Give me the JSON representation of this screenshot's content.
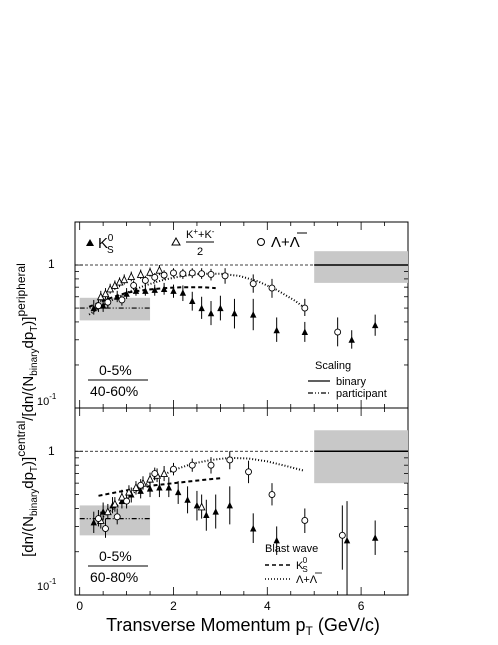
{
  "figure": {
    "x_axis_label": "Transverse Momentum p_T (GeV/c)",
    "y_axis_label": "[dn/(N_binary dp_T)]^central / [dn/(N_binary dp_T)]^peripheral",
    "x_ticks": [
      "0",
      "2",
      "4",
      "6"
    ],
    "y_ticks": [
      "10^-1",
      "1",
      "10^-1",
      "1"
    ]
  },
  "chart_data": [
    {
      "type": "scatter",
      "panel": "top",
      "centrality_label": {
        "numerator": "0-5%",
        "denominator": "40-60%"
      },
      "xlim": [
        -0.1,
        7.0
      ],
      "ylim": [
        0.1,
        2.0
      ],
      "log_y": true,
      "legend": {
        "entries": [
          {
            "marker": "filled-triangle",
            "label": "K_S^0"
          },
          {
            "marker": "open-triangle",
            "label": "(K^+ + K^-)/2"
          },
          {
            "marker": "open-circle",
            "label": "Λ+Λ̄"
          }
        ]
      },
      "legend2": {
        "title": "Scaling",
        "entries": [
          {
            "style": "solid",
            "label": "binary"
          },
          {
            "style": "dash-dot",
            "label": "participant"
          }
        ]
      },
      "reference_lines": {
        "binary": {
          "y": 1.0,
          "x": [
            5.0,
            7.0
          ],
          "band": [
            0.75,
            1.25
          ]
        },
        "participant": {
          "y": 0.5,
          "x": [
            0.0,
            1.5
          ],
          "band": [
            0.41,
            0.59
          ]
        },
        "unity": 1.0
      },
      "series": [
        {
          "name": "K_S^0",
          "marker": "filled-triangle",
          "points": [
            {
              "x": 0.3,
              "y": 0.5,
              "lo": 0.45,
              "hi": 0.57
            },
            {
              "x": 0.5,
              "y": 0.52,
              "lo": 0.47,
              "hi": 0.58
            },
            {
              "x": 0.6,
              "y": 0.57,
              "lo": 0.51,
              "hi": 0.63
            },
            {
              "x": 0.8,
              "y": 0.6,
              "lo": 0.55,
              "hi": 0.66
            },
            {
              "x": 1.0,
              "y": 0.63,
              "lo": 0.58,
              "hi": 0.69
            },
            {
              "x": 1.2,
              "y": 0.66,
              "lo": 0.61,
              "hi": 0.72
            },
            {
              "x": 1.4,
              "y": 0.66,
              "lo": 0.61,
              "hi": 0.72
            },
            {
              "x": 1.6,
              "y": 0.67,
              "lo": 0.61,
              "hi": 0.73
            },
            {
              "x": 1.8,
              "y": 0.68,
              "lo": 0.62,
              "hi": 0.75
            },
            {
              "x": 2.0,
              "y": 0.66,
              "lo": 0.59,
              "hi": 0.73
            },
            {
              "x": 2.2,
              "y": 0.64,
              "lo": 0.56,
              "hi": 0.72
            },
            {
              "x": 2.4,
              "y": 0.56,
              "lo": 0.48,
              "hi": 0.65
            },
            {
              "x": 2.6,
              "y": 0.5,
              "lo": 0.42,
              "hi": 0.6
            },
            {
              "x": 2.8,
              "y": 0.46,
              "lo": 0.38,
              "hi": 0.56
            },
            {
              "x": 3.0,
              "y": 0.5,
              "lo": 0.41,
              "hi": 0.61
            },
            {
              "x": 3.3,
              "y": 0.46,
              "lo": 0.36,
              "hi": 0.58
            },
            {
              "x": 3.7,
              "y": 0.45,
              "lo": 0.35,
              "hi": 0.58
            },
            {
              "x": 4.2,
              "y": 0.35,
              "lo": 0.29,
              "hi": 0.43
            },
            {
              "x": 4.8,
              "y": 0.34,
              "lo": 0.29,
              "hi": 0.4
            },
            {
              "x": 5.8,
              "y": 0.3,
              "lo": 0.26,
              "hi": 0.35
            },
            {
              "x": 6.3,
              "y": 0.38,
              "lo": 0.32,
              "hi": 0.45
            }
          ]
        },
        {
          "name": "(K^+ + K^-)/2",
          "marker": "open-triangle",
          "points": [
            {
              "x": 0.45,
              "y": 0.6,
              "lo": 0.55,
              "hi": 0.66
            },
            {
              "x": 0.55,
              "y": 0.63,
              "lo": 0.58,
              "hi": 0.69
            },
            {
              "x": 0.65,
              "y": 0.68,
              "lo": 0.63,
              "hi": 0.74
            },
            {
              "x": 0.75,
              "y": 0.72,
              "lo": 0.67,
              "hi": 0.78
            },
            {
              "x": 0.85,
              "y": 0.76,
              "lo": 0.7,
              "hi": 0.82
            },
            {
              "x": 0.95,
              "y": 0.79,
              "lo": 0.73,
              "hi": 0.86
            },
            {
              "x": 1.1,
              "y": 0.83,
              "lo": 0.77,
              "hi": 0.9
            },
            {
              "x": 1.3,
              "y": 0.86,
              "lo": 0.8,
              "hi": 0.93
            },
            {
              "x": 1.5,
              "y": 0.89,
              "lo": 0.83,
              "hi": 0.96
            },
            {
              "x": 1.7,
              "y": 0.92,
              "lo": 0.85,
              "hi": 1.0
            }
          ]
        },
        {
          "name": "Λ+Λ̄",
          "marker": "open-circle",
          "points": [
            {
              "x": 0.4,
              "y": 0.52,
              "lo": 0.47,
              "hi": 0.57
            },
            {
              "x": 0.6,
              "y": 0.55,
              "lo": 0.5,
              "hi": 0.6
            },
            {
              "x": 0.9,
              "y": 0.57,
              "lo": 0.52,
              "hi": 0.62
            },
            {
              "x": 1.15,
              "y": 0.72,
              "lo": 0.67,
              "hi": 0.78
            },
            {
              "x": 1.4,
              "y": 0.78,
              "lo": 0.72,
              "hi": 0.84
            },
            {
              "x": 1.6,
              "y": 0.82,
              "lo": 0.76,
              "hi": 0.88
            },
            {
              "x": 1.8,
              "y": 0.85,
              "lo": 0.79,
              "hi": 0.92
            },
            {
              "x": 2.0,
              "y": 0.88,
              "lo": 0.82,
              "hi": 0.95
            },
            {
              "x": 2.2,
              "y": 0.87,
              "lo": 0.8,
              "hi": 0.94
            },
            {
              "x": 2.4,
              "y": 0.88,
              "lo": 0.81,
              "hi": 0.95
            },
            {
              "x": 2.6,
              "y": 0.87,
              "lo": 0.8,
              "hi": 0.95
            },
            {
              "x": 2.8,
              "y": 0.86,
              "lo": 0.78,
              "hi": 0.94
            },
            {
              "x": 3.1,
              "y": 0.84,
              "lo": 0.74,
              "hi": 0.95
            },
            {
              "x": 3.7,
              "y": 0.74,
              "lo": 0.64,
              "hi": 0.86
            },
            {
              "x": 4.1,
              "y": 0.69,
              "lo": 0.59,
              "hi": 0.8
            },
            {
              "x": 4.8,
              "y": 0.5,
              "lo": 0.44,
              "hi": 0.58
            },
            {
              "x": 5.5,
              "y": 0.34,
              "lo": 0.27,
              "hi": 0.43
            }
          ]
        }
      ],
      "curves": [
        {
          "name": "K_S^0 blast wave",
          "style": "dashed",
          "x": [
            0.2,
            0.6,
            1.0,
            1.4,
            1.8,
            2.2,
            2.6,
            2.9
          ],
          "y": [
            0.51,
            0.58,
            0.64,
            0.67,
            0.69,
            0.7,
            0.7,
            0.69
          ]
        },
        {
          "name": "Λ+Λ̄ blast wave",
          "style": "dotted",
          "x": [
            0.2,
            0.6,
            1.0,
            1.4,
            1.8,
            2.2,
            2.6,
            3.0,
            3.4,
            3.8,
            4.2,
            4.6,
            4.8
          ],
          "y": [
            0.45,
            0.55,
            0.64,
            0.72,
            0.79,
            0.84,
            0.87,
            0.87,
            0.84,
            0.77,
            0.67,
            0.56,
            0.5
          ]
        }
      ]
    },
    {
      "type": "scatter",
      "panel": "bottom",
      "centrality_label": {
        "numerator": "0-5%",
        "denominator": "60-80%"
      },
      "xlim": [
        -0.1,
        7.0
      ],
      "ylim": [
        0.1,
        2.0
      ],
      "log_y": true,
      "legend": {
        "title": "Blast wave",
        "entries": [
          {
            "style": "dashed",
            "label": "K_S^0"
          },
          {
            "style": "dotted",
            "label": "Λ+Λ̄"
          }
        ]
      },
      "reference_lines": {
        "binary": {
          "y": 1.0,
          "x": [
            5.0,
            7.0
          ],
          "band": [
            0.6,
            1.4
          ]
        },
        "participant": {
          "y": 0.34,
          "x": [
            0.0,
            1.5
          ],
          "band": [
            0.26,
            0.42
          ]
        },
        "unity": 1.0
      },
      "series": [
        {
          "name": "K_S^0",
          "marker": "filled-triangle",
          "points": [
            {
              "x": 0.3,
              "y": 0.32,
              "lo": 0.27,
              "hi": 0.38
            },
            {
              "x": 0.5,
              "y": 0.38,
              "lo": 0.33,
              "hi": 0.44
            },
            {
              "x": 0.7,
              "y": 0.42,
              "lo": 0.37,
              "hi": 0.48
            },
            {
              "x": 0.9,
              "y": 0.45,
              "lo": 0.4,
              "hi": 0.51
            },
            {
              "x": 1.1,
              "y": 0.5,
              "lo": 0.44,
              "hi": 0.56
            },
            {
              "x": 1.3,
              "y": 0.53,
              "lo": 0.47,
              "hi": 0.6
            },
            {
              "x": 1.5,
              "y": 0.55,
              "lo": 0.48,
              "hi": 0.62
            },
            {
              "x": 1.7,
              "y": 0.56,
              "lo": 0.48,
              "hi": 0.64
            },
            {
              "x": 1.9,
              "y": 0.56,
              "lo": 0.48,
              "hi": 0.66
            },
            {
              "x": 2.1,
              "y": 0.52,
              "lo": 0.43,
              "hi": 0.62
            },
            {
              "x": 2.3,
              "y": 0.46,
              "lo": 0.37,
              "hi": 0.57
            },
            {
              "x": 2.5,
              "y": 0.42,
              "lo": 0.33,
              "hi": 0.53
            },
            {
              "x": 2.7,
              "y": 0.36,
              "lo": 0.28,
              "hi": 0.46
            },
            {
              "x": 2.9,
              "y": 0.38,
              "lo": 0.29,
              "hi": 0.5
            },
            {
              "x": 3.2,
              "y": 0.42,
              "lo": 0.31,
              "hi": 0.57
            },
            {
              "x": 3.7,
              "y": 0.29,
              "lo": 0.23,
              "hi": 0.37
            },
            {
              "x": 4.2,
              "y": 0.24,
              "lo": 0.19,
              "hi": 0.3
            },
            {
              "x": 5.7,
              "y": 0.24,
              "lo": 0.1,
              "hi": 0.45
            },
            {
              "x": 6.3,
              "y": 0.25,
              "lo": 0.19,
              "hi": 0.33
            }
          ]
        },
        {
          "name": "(K^+ + K^-)/2",
          "marker": "open-triangle",
          "points": [
            {
              "x": 0.45,
              "y": 0.33,
              "lo": 0.29,
              "hi": 0.38
            },
            {
              "x": 0.6,
              "y": 0.38,
              "lo": 0.34,
              "hi": 0.43
            },
            {
              "x": 0.75,
              "y": 0.43,
              "lo": 0.38,
              "hi": 0.48
            },
            {
              "x": 0.9,
              "y": 0.48,
              "lo": 0.43,
              "hi": 0.54
            },
            {
              "x": 1.05,
              "y": 0.52,
              "lo": 0.47,
              "hi": 0.58
            },
            {
              "x": 1.2,
              "y": 0.56,
              "lo": 0.5,
              "hi": 0.62
            },
            {
              "x": 1.35,
              "y": 0.6,
              "lo": 0.54,
              "hi": 0.67
            },
            {
              "x": 1.5,
              "y": 0.64,
              "lo": 0.57,
              "hi": 0.71
            },
            {
              "x": 1.65,
              "y": 0.68,
              "lo": 0.61,
              "hi": 0.76
            },
            {
              "x": 1.8,
              "y": 0.7,
              "lo": 0.62,
              "hi": 0.79
            },
            {
              "x": 2.6,
              "y": 0.41,
              "lo": 0.34,
              "hi": 0.5
            }
          ]
        },
        {
          "name": "Λ+Λ̄",
          "marker": "open-circle",
          "points": [
            {
              "x": 0.4,
              "y": 0.34,
              "lo": 0.3,
              "hi": 0.39
            },
            {
              "x": 0.55,
              "y": 0.29,
              "lo": 0.25,
              "hi": 0.34
            },
            {
              "x": 0.8,
              "y": 0.35,
              "lo": 0.31,
              "hi": 0.4
            },
            {
              "x": 1.0,
              "y": 0.45,
              "lo": 0.4,
              "hi": 0.5
            },
            {
              "x": 1.3,
              "y": 0.58,
              "lo": 0.52,
              "hi": 0.64
            },
            {
              "x": 1.6,
              "y": 0.7,
              "lo": 0.63,
              "hi": 0.77
            },
            {
              "x": 2.0,
              "y": 0.75,
              "lo": 0.68,
              "hi": 0.83
            },
            {
              "x": 2.4,
              "y": 0.8,
              "lo": 0.72,
              "hi": 0.89
            },
            {
              "x": 2.8,
              "y": 0.8,
              "lo": 0.7,
              "hi": 0.91
            },
            {
              "x": 3.2,
              "y": 0.87,
              "lo": 0.75,
              "hi": 1.0
            },
            {
              "x": 3.6,
              "y": 0.72,
              "lo": 0.6,
              "hi": 0.86
            },
            {
              "x": 4.1,
              "y": 0.5,
              "lo": 0.42,
              "hi": 0.6
            },
            {
              "x": 4.8,
              "y": 0.33,
              "lo": 0.27,
              "hi": 0.4
            },
            {
              "x": 5.6,
              "y": 0.26,
              "lo": 0.15,
              "hi": 0.42
            }
          ]
        }
      ],
      "curves": [
        {
          "name": "K_S^0 blast wave",
          "style": "dashed",
          "x": [
            0.4,
            0.8,
            1.2,
            1.6,
            2.0,
            2.4,
            2.8,
            3.0
          ],
          "y": [
            0.49,
            0.52,
            0.55,
            0.58,
            0.6,
            0.62,
            0.64,
            0.65
          ]
        },
        {
          "name": "Λ+Λ̄ blast wave",
          "style": "dotted",
          "x": [
            0.4,
            0.8,
            1.2,
            1.6,
            2.0,
            2.4,
            2.8,
            3.2,
            3.6,
            4.0,
            4.4,
            4.8
          ],
          "y": [
            0.33,
            0.42,
            0.53,
            0.64,
            0.74,
            0.82,
            0.87,
            0.9,
            0.89,
            0.85,
            0.79,
            0.73
          ]
        }
      ]
    }
  ]
}
